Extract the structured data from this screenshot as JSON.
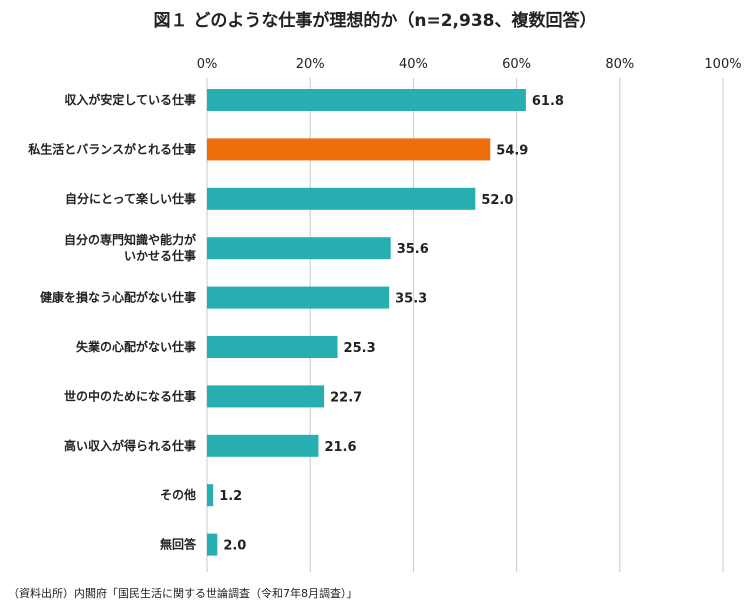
{
  "title": "図１ どのような仕事が理想的か（n=2,938、複数回答）",
  "source": "（資料出所）内閣府「国民生活に関する世論調査（令和7年8月調査）」",
  "colors": {
    "default": "#26AEB0",
    "highlight": "#EE6E0C",
    "grid": "#C8C8C8"
  },
  "chart_data": {
    "type": "bar",
    "orientation": "horizontal",
    "title": "図１ どのような仕事が理想的か（n=2,938、複数回答）",
    "xlim": [
      0,
      100
    ],
    "x_ticks": [
      "0%",
      "20%",
      "40%",
      "60%",
      "80%",
      "100%"
    ],
    "grid": true,
    "categories": [
      "収入が安定している仕事",
      "私生活とバランスがとれる仕事",
      "自分にとって楽しい仕事",
      "自分の専門知識や能力が\nいかせる仕事",
      "健康を損なう心配がない仕事",
      "失業の心配がない仕事",
      "世の中のためになる仕事",
      "高い収入が得られる仕事",
      "その他",
      "無回答"
    ],
    "values": [
      61.8,
      54.9,
      52.0,
      35.6,
      35.3,
      25.3,
      22.7,
      21.6,
      1.2,
      2.0
    ],
    "value_labels": [
      "61.8",
      "54.9",
      "52.0",
      "35.6",
      "35.3",
      "25.3",
      "22.7",
      "21.6",
      "1.2",
      "2.0"
    ],
    "highlight_index": 1
  }
}
